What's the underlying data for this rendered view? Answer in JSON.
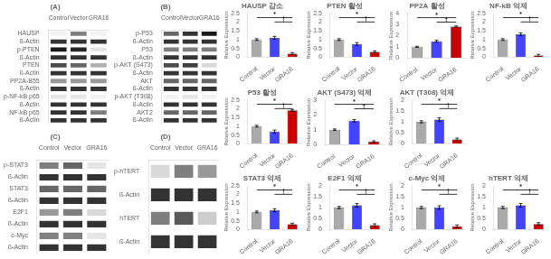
{
  "chart_data": [
    {
      "type": "heatmap",
      "title": "(A)",
      "x": [
        "Control",
        "Vector",
        "GRA16"
      ],
      "y": [
        "HAUSP",
        "ß-Actin",
        "p-PTEN",
        "ß-Actin",
        "PTEN",
        "ß-Actin",
        "PP2A-B55",
        "ß-Actin",
        "p-NF-kB p65",
        "ß-Actin",
        "NF-kB p65",
        "ß-Actin"
      ],
      "values": [
        [
          0.05,
          0.5,
          0.05
        ],
        [
          0.8,
          0.8,
          0.8
        ],
        [
          0.9,
          0.85,
          0.1
        ],
        [
          0.8,
          0.8,
          0.8
        ],
        [
          0.7,
          0.6,
          0.3
        ],
        [
          0.8,
          0.8,
          0.8
        ],
        [
          0.4,
          0.4,
          0.4
        ],
        [
          0.8,
          0.8,
          0.8
        ],
        [
          0.1,
          0.1,
          0.05
        ],
        [
          0.8,
          0.8,
          0.8
        ],
        [
          0.8,
          0.8,
          0.5
        ],
        [
          0.8,
          0.8,
          0.8
        ]
      ],
      "grid": false
    },
    {
      "type": "bar",
      "title": "HAUSP 감소",
      "categories": [
        "Control",
        "Vector",
        "GRA16"
      ],
      "values": [
        1.0,
        1.1,
        0.2
      ],
      "errors": [
        0.05,
        0.08,
        0.06
      ],
      "colors": [
        "#aaaaaa",
        "#4444ff",
        "#cc0000"
      ],
      "ylabel": "Relative Expression",
      "ylim": [
        0,
        2.5
      ],
      "yticks": [
        0,
        0.5,
        1,
        1.5,
        2,
        2.5
      ],
      "annotations": [
        {
          "text": "*",
          "from": "Control",
          "to": "GRA16"
        },
        {
          "text": "†",
          "from": "Vector",
          "to": "GRA16"
        }
      ],
      "grid": false
    },
    {
      "type": "bar",
      "title": "PTEN 활성",
      "categories": [
        "Control",
        "Vector",
        "GRA16"
      ],
      "values": [
        1.0,
        0.75,
        0.3
      ],
      "errors": [
        0.05,
        0.08,
        0.06
      ],
      "colors": [
        "#aaaaaa",
        "#4444ff",
        "#cc0000"
      ],
      "ylabel": "Relative Expression",
      "ylim": [
        0,
        2.5
      ],
      "yticks": [
        0,
        0.5,
        1,
        1.5,
        2,
        2.5
      ],
      "annotations": [
        {
          "text": "*",
          "from": "Control",
          "to": "GRA16"
        },
        {
          "text": "†",
          "from": "Vector",
          "to": "GRA16"
        }
      ],
      "grid": false
    },
    {
      "type": "bar",
      "title": "PP2A 활성",
      "categories": [
        "Control",
        "Vector",
        "GRA16"
      ],
      "values": [
        1.0,
        1.5,
        2.8
      ],
      "errors": [
        0.05,
        0.08,
        0.06
      ],
      "colors": [
        "#aaaaaa",
        "#4444ff",
        "#cc0000"
      ],
      "ylabel": "Relative Expression",
      "ylim": [
        0,
        4.0
      ],
      "yticks": [
        0,
        1,
        2,
        3,
        4
      ],
      "annotations": [
        {
          "text": "*",
          "from": "Control",
          "to": "GRA16"
        },
        {
          "text": "†",
          "from": "Vector",
          "to": "GRA16"
        }
      ],
      "grid": false
    },
    {
      "type": "bar",
      "title": "NF-kB 억제",
      "categories": [
        "Control",
        "Vector",
        "GRA16"
      ],
      "values": [
        1.0,
        1.3,
        0.1
      ],
      "errors": [
        0.05,
        0.08,
        0.06
      ],
      "colors": [
        "#aaaaaa",
        "#4444ff",
        "#cc0000"
      ],
      "ylabel": "Relative Expression",
      "ylim": [
        0,
        2.5
      ],
      "yticks": [
        0,
        0.5,
        1,
        1.5,
        2,
        2.5
      ],
      "annotations": [
        {
          "text": "*",
          "from": "Control",
          "to": "GRA16"
        },
        {
          "text": "†",
          "from": "Vector",
          "to": "GRA16"
        }
      ],
      "grid": false
    },
    {
      "type": "heatmap",
      "title": "(B)",
      "x": [
        "Control",
        "Vector",
        "GRA16"
      ],
      "y": [
        "p-P53",
        "ß-Actin",
        "P53",
        "ß-Actin",
        "p-AKT (S473)",
        "ß-Actin",
        "AKT",
        "ß-Actin",
        "p-AKT (T308)",
        "ß-Actin",
        "AKT2",
        "ß-Actin"
      ],
      "values": [
        [
          0.6,
          0.8,
          0.9
        ],
        [
          0.8,
          0.8,
          0.8
        ],
        [
          0.5,
          0.5,
          0.5
        ],
        [
          0.8,
          0.8,
          0.8
        ],
        [
          0.7,
          0.75,
          0.15
        ],
        [
          0.8,
          0.8,
          0.8
        ],
        [
          0.6,
          0.6,
          0.6
        ],
        [
          0.8,
          0.8,
          0.8
        ],
        [
          0.05,
          0.1,
          0.05
        ],
        [
          0.8,
          0.8,
          0.8
        ],
        [
          0.6,
          0.6,
          0.6
        ],
        [
          0.8,
          0.8,
          0.8
        ]
      ],
      "grid": false
    },
    {
      "type": "bar",
      "title": "P53 활성",
      "categories": [
        "Control",
        "Vector",
        "GRA16"
      ],
      "values": [
        1.0,
        0.7,
        1.9
      ],
      "errors": [
        0.05,
        0.08,
        0.06
      ],
      "colors": [
        "#aaaaaa",
        "#4444ff",
        "#cc0000"
      ],
      "ylabel": "Relative Expression",
      "ylim": [
        0,
        2.5
      ],
      "yticks": [
        0,
        0.5,
        1,
        1.5,
        2,
        2.5
      ],
      "annotations": [
        {
          "text": "*",
          "from": "Control",
          "to": "GRA16"
        },
        {
          "text": "†",
          "from": "Vector",
          "to": "GRA16"
        }
      ],
      "grid": false
    },
    {
      "type": "bar",
      "title": "AKT (S473) 억제",
      "categories": [
        "Control",
        "Vector",
        "GRA16"
      ],
      "values": [
        1.0,
        1.6,
        0.2
      ],
      "errors": [
        0.05,
        0.08,
        0.06
      ],
      "colors": [
        "#aaaaaa",
        "#4444ff",
        "#cc0000"
      ],
      "ylabel": "Relative Expression",
      "ylim": [
        0,
        3.0
      ],
      "yticks": [
        0,
        1,
        2,
        3
      ],
      "annotations": [
        {
          "text": "*",
          "from": "Control",
          "to": "GRA16"
        },
        {
          "text": "†",
          "from": "Vector",
          "to": "GRA16"
        }
      ],
      "grid": false
    },
    {
      "type": "bar",
      "title": "AKT (T308) 억제",
      "categories": [
        "Control",
        "Vector",
        "GRA16"
      ],
      "values": [
        1.0,
        1.1,
        0.2
      ],
      "errors": [
        0.05,
        0.08,
        0.06
      ],
      "colors": [
        "#aaaaaa",
        "#4444ff",
        "#cc0000"
      ],
      "ylabel": "Relative Expression",
      "ylim": [
        0,
        2.0
      ],
      "yticks": [
        0,
        0.5,
        1,
        1.5,
        2
      ],
      "annotations": [
        {
          "text": "*",
          "from": "Control",
          "to": "GRA16"
        },
        {
          "text": "†",
          "from": "Vector",
          "to": "GRA16"
        }
      ],
      "grid": false
    },
    {
      "type": "heatmap",
      "title": "(C)",
      "x": [
        "Control",
        "Vector",
        "GRA16"
      ],
      "y": [
        "p-STAT3",
        "ß-Actin",
        "STAT3",
        "ß-Actin",
        "E2F1",
        "ß-Actin",
        "c-Myc",
        "ß-Actin"
      ],
      "values": [
        [
          0.5,
          0.6,
          0.1
        ],
        [
          0.8,
          0.8,
          0.8
        ],
        [
          0.6,
          0.6,
          0.6
        ],
        [
          0.8,
          0.8,
          0.8
        ],
        [
          0.4,
          0.5,
          0.15
        ],
        [
          0.8,
          0.8,
          0.8
        ],
        [
          0.5,
          0.5,
          0.1
        ],
        [
          0.8,
          0.8,
          0.8
        ]
      ],
      "grid": false
    },
    {
      "type": "bar",
      "title": "STAT3 억제",
      "categories": [
        "Control",
        "Vector",
        "GRA16"
      ],
      "values": [
        1.0,
        1.1,
        0.3
      ],
      "errors": [
        0.05,
        0.08,
        0.06
      ],
      "colors": [
        "#aaaaaa",
        "#4444ff",
        "#cc0000"
      ],
      "ylabel": "Relative Expression",
      "ylim": [
        0,
        2.5
      ],
      "yticks": [
        0,
        0.5,
        1,
        1.5,
        2,
        2.5
      ],
      "annotations": [
        {
          "text": "*",
          "from": "Control",
          "to": "GRA16"
        },
        {
          "text": "†",
          "from": "Vector",
          "to": "GRA16"
        }
      ],
      "grid": false
    },
    {
      "type": "bar",
      "title": "E2F1 억제",
      "categories": [
        "Control",
        "Vector",
        "GRA16"
      ],
      "values": [
        1.0,
        1.1,
        0.2
      ],
      "errors": [
        0.05,
        0.08,
        0.06
      ],
      "colors": [
        "#aaaaaa",
        "#4444ff",
        "#cc0000"
      ],
      "ylabel": "Relative Expression",
      "ylim": [
        0,
        2.0
      ],
      "yticks": [
        0,
        0.5,
        1,
        1.5,
        2
      ],
      "annotations": [
        {
          "text": "*",
          "from": "Control",
          "to": "GRA16"
        },
        {
          "text": "†",
          "from": "Vector",
          "to": "GRA16"
        }
      ],
      "grid": false
    },
    {
      "type": "bar",
      "title": "c-Myc 억제",
      "categories": [
        "Control",
        "Vector",
        "GRA16"
      ],
      "values": [
        1.0,
        1.0,
        0.15
      ],
      "errors": [
        0.05,
        0.08,
        0.06
      ],
      "colors": [
        "#aaaaaa",
        "#4444ff",
        "#cc0000"
      ],
      "ylabel": "Relative Expression",
      "ylim": [
        0,
        2.0
      ],
      "yticks": [
        0,
        0.5,
        1,
        1.5,
        2
      ],
      "annotations": [
        {
          "text": "*",
          "from": "Control",
          "to": "GRA16"
        },
        {
          "text": "†",
          "from": "Vector",
          "to": "GRA16"
        }
      ],
      "grid": false
    },
    {
      "type": "heatmap",
      "title": "(D)",
      "x": [
        "Control",
        "Vector",
        "GRA16"
      ],
      "y": [
        "p-hTERT",
        "ß-Actin",
        "hTERT",
        "ß-Actin"
      ],
      "values": [
        [
          0.15,
          0.5,
          0.4
        ],
        [
          0.8,
          0.8,
          0.8
        ],
        [
          0.5,
          0.65,
          0.2
        ],
        [
          0.8,
          0.8,
          0.8
        ]
      ],
      "grid": false
    },
    {
      "type": "bar",
      "title": "hTERT 억제",
      "categories": [
        "Control",
        "Vector",
        "GRA16"
      ],
      "values": [
        1.0,
        1.1,
        0.25
      ],
      "errors": [
        0.05,
        0.08,
        0.06
      ],
      "colors": [
        "#aaaaaa",
        "#4444ff",
        "#cc0000"
      ],
      "ylabel": "Relative Expression",
      "ylim": [
        0,
        2.0
      ],
      "yticks": [
        0,
        0.5,
        1,
        1.5,
        2
      ],
      "annotations": [
        {
          "text": "*",
          "from": "Control",
          "to": "GRA16"
        },
        {
          "text": "†",
          "from": "Vector",
          "to": "GRA16"
        }
      ],
      "grid": false
    }
  ]
}
